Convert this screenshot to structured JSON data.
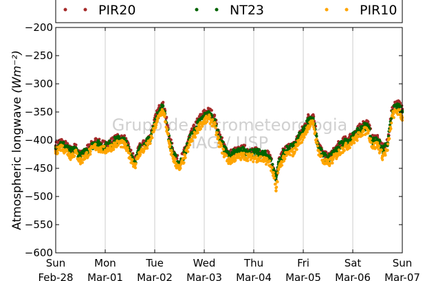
{
  "chart_data": {
    "type": "scatter",
    "ylabel": "Atmospheric longwave",
    "ylabel_unit": "(Wm⁻²)",
    "ylim": [
      -600,
      -200
    ],
    "yticks": [
      -200,
      -250,
      -300,
      -350,
      -400,
      -450,
      -500,
      -550,
      -600
    ],
    "xlim": [
      0,
      7
    ],
    "x_unit": "days since Feb-28 00:00",
    "xticks": [
      {
        "day": "Sun",
        "date": "Feb-28"
      },
      {
        "day": "Mon",
        "date": "Mar-01"
      },
      {
        "day": "Tue",
        "date": "Mar-02"
      },
      {
        "day": "Wed",
        "date": "Mar-03"
      },
      {
        "day": "Thu",
        "date": "Mar-04"
      },
      {
        "day": "Fri",
        "date": "Mar-05"
      },
      {
        "day": "Sat",
        "date": "Mar-06"
      },
      {
        "day": "Sun",
        "date": "Mar-07"
      }
    ],
    "grid": {
      "x": true,
      "y": false
    },
    "legend_position": "top",
    "watermark": [
      "Grupo de Micrometeorologia",
      "IAG / USP"
    ],
    "series": [
      {
        "name": "PIR20",
        "color": "#a52a2a",
        "x": [
          0.0,
          0.1,
          0.2,
          0.3,
          0.4,
          0.5,
          0.6,
          0.7,
          0.8,
          0.9,
          1.0,
          1.1,
          1.2,
          1.3,
          1.4,
          1.5,
          1.6,
          1.7,
          1.8,
          1.9,
          2.0,
          2.05,
          2.1,
          2.15,
          2.2,
          2.3,
          2.4,
          2.5,
          2.6,
          2.7,
          2.8,
          2.9,
          3.0,
          3.1,
          3.2,
          3.3,
          3.4,
          3.5,
          3.6,
          3.7,
          3.8,
          3.9,
          4.0,
          4.1,
          4.2,
          4.3,
          4.4,
          4.45,
          4.5,
          4.6,
          4.7,
          4.8,
          4.9,
          5.0,
          5.1,
          5.2,
          5.3,
          5.4,
          5.5,
          5.6,
          5.7,
          5.8,
          5.9,
          6.0,
          6.1,
          6.2,
          6.3,
          6.4,
          6.5,
          6.6,
          6.7,
          6.8,
          6.9,
          7.0
        ],
        "y": [
          -410,
          -402,
          -408,
          -418,
          -412,
          -428,
          -418,
          -410,
          -402,
          -406,
          -408,
          -404,
          -398,
          -395,
          -398,
          -420,
          -435,
          -412,
          -405,
          -395,
          -365,
          -352,
          -342,
          -335,
          -345,
          -398,
          -425,
          -440,
          -420,
          -395,
          -378,
          -362,
          -352,
          -348,
          -358,
          -390,
          -410,
          -425,
          -420,
          -418,
          -415,
          -418,
          -420,
          -420,
          -422,
          -425,
          -450,
          -470,
          -440,
          -420,
          -412,
          -410,
          -392,
          -380,
          -360,
          -355,
          -405,
          -425,
          -430,
          -422,
          -410,
          -402,
          -398,
          -390,
          -382,
          -372,
          -368,
          -398,
          -395,
          -415,
          -405,
          -342,
          -332,
          -345
        ]
      },
      {
        "name": "NT23",
        "color": "#006400",
        "x": [
          0.0,
          0.1,
          0.2,
          0.3,
          0.4,
          0.5,
          0.6,
          0.7,
          0.8,
          0.9,
          1.0,
          1.1,
          1.2,
          1.3,
          1.4,
          1.5,
          1.6,
          1.7,
          1.8,
          1.9,
          2.0,
          2.05,
          2.1,
          2.15,
          2.2,
          2.3,
          2.4,
          2.5,
          2.6,
          2.7,
          2.8,
          2.9,
          3.0,
          3.1,
          3.2,
          3.3,
          3.4,
          3.5,
          3.6,
          3.7,
          3.8,
          3.9,
          4.0,
          4.1,
          4.2,
          4.3,
          4.4,
          4.45,
          4.5,
          4.6,
          4.7,
          4.8,
          4.9,
          5.0,
          5.1,
          5.2,
          5.3,
          5.4,
          5.5,
          5.6,
          5.7,
          5.8,
          5.9,
          6.0,
          6.1,
          6.2,
          6.3,
          6.4,
          6.5,
          6.6,
          6.7,
          6.8,
          6.9,
          7.0
        ],
        "y": [
          -414,
          -406,
          -411,
          -421,
          -416,
          -430,
          -420,
          -413,
          -405,
          -409,
          -411,
          -407,
          -401,
          -398,
          -402,
          -423,
          -438,
          -415,
          -408,
          -398,
          -370,
          -358,
          -348,
          -341,
          -350,
          -403,
          -429,
          -444,
          -424,
          -399,
          -383,
          -368,
          -358,
          -354,
          -364,
          -395,
          -414,
          -428,
          -423,
          -421,
          -418,
          -421,
          -423,
          -423,
          -425,
          -428,
          -452,
          -466,
          -443,
          -423,
          -415,
          -413,
          -396,
          -385,
          -366,
          -362,
          -409,
          -428,
          -433,
          -425,
          -414,
          -406,
          -402,
          -394,
          -386,
          -377,
          -374,
          -402,
          -399,
          -418,
          -409,
          -348,
          -340,
          -350
        ]
      },
      {
        "name": "PIR10",
        "color": "#ffa500",
        "x": [
          0.0,
          0.1,
          0.2,
          0.3,
          0.4,
          0.5,
          0.6,
          0.7,
          0.8,
          0.9,
          1.0,
          1.1,
          1.2,
          1.3,
          1.4,
          1.5,
          1.6,
          1.7,
          1.8,
          1.9,
          2.0,
          2.05,
          2.1,
          2.15,
          2.2,
          2.3,
          2.4,
          2.5,
          2.6,
          2.7,
          2.8,
          2.9,
          3.0,
          3.1,
          3.2,
          3.3,
          3.4,
          3.5,
          3.6,
          3.7,
          3.8,
          3.9,
          4.0,
          4.1,
          4.2,
          4.3,
          4.4,
          4.45,
          4.5,
          4.6,
          4.7,
          4.8,
          4.9,
          5.0,
          5.1,
          5.2,
          5.3,
          5.4,
          5.5,
          5.6,
          5.7,
          5.8,
          5.9,
          6.0,
          6.1,
          6.2,
          6.3,
          6.4,
          6.5,
          6.6,
          6.7,
          6.8,
          6.9,
          7.0
        ],
        "y": [
          -420,
          -412,
          -418,
          -428,
          -422,
          -438,
          -428,
          -420,
          -412,
          -416,
          -418,
          -414,
          -408,
          -405,
          -410,
          -430,
          -445,
          -422,
          -415,
          -405,
          -378,
          -366,
          -356,
          -348,
          -358,
          -412,
          -438,
          -452,
          -432,
          -408,
          -392,
          -376,
          -366,
          -362,
          -372,
          -405,
          -424,
          -438,
          -432,
          -430,
          -428,
          -430,
          -432,
          -432,
          -435,
          -438,
          -462,
          -490,
          -452,
          -432,
          -424,
          -422,
          -405,
          -394,
          -375,
          -370,
          -418,
          -438,
          -442,
          -434,
          -424,
          -415,
          -410,
          -402,
          -394,
          -385,
          -382,
          -412,
          -408,
          -428,
          -418,
          -356,
          -348,
          -360
        ]
      }
    ]
  }
}
